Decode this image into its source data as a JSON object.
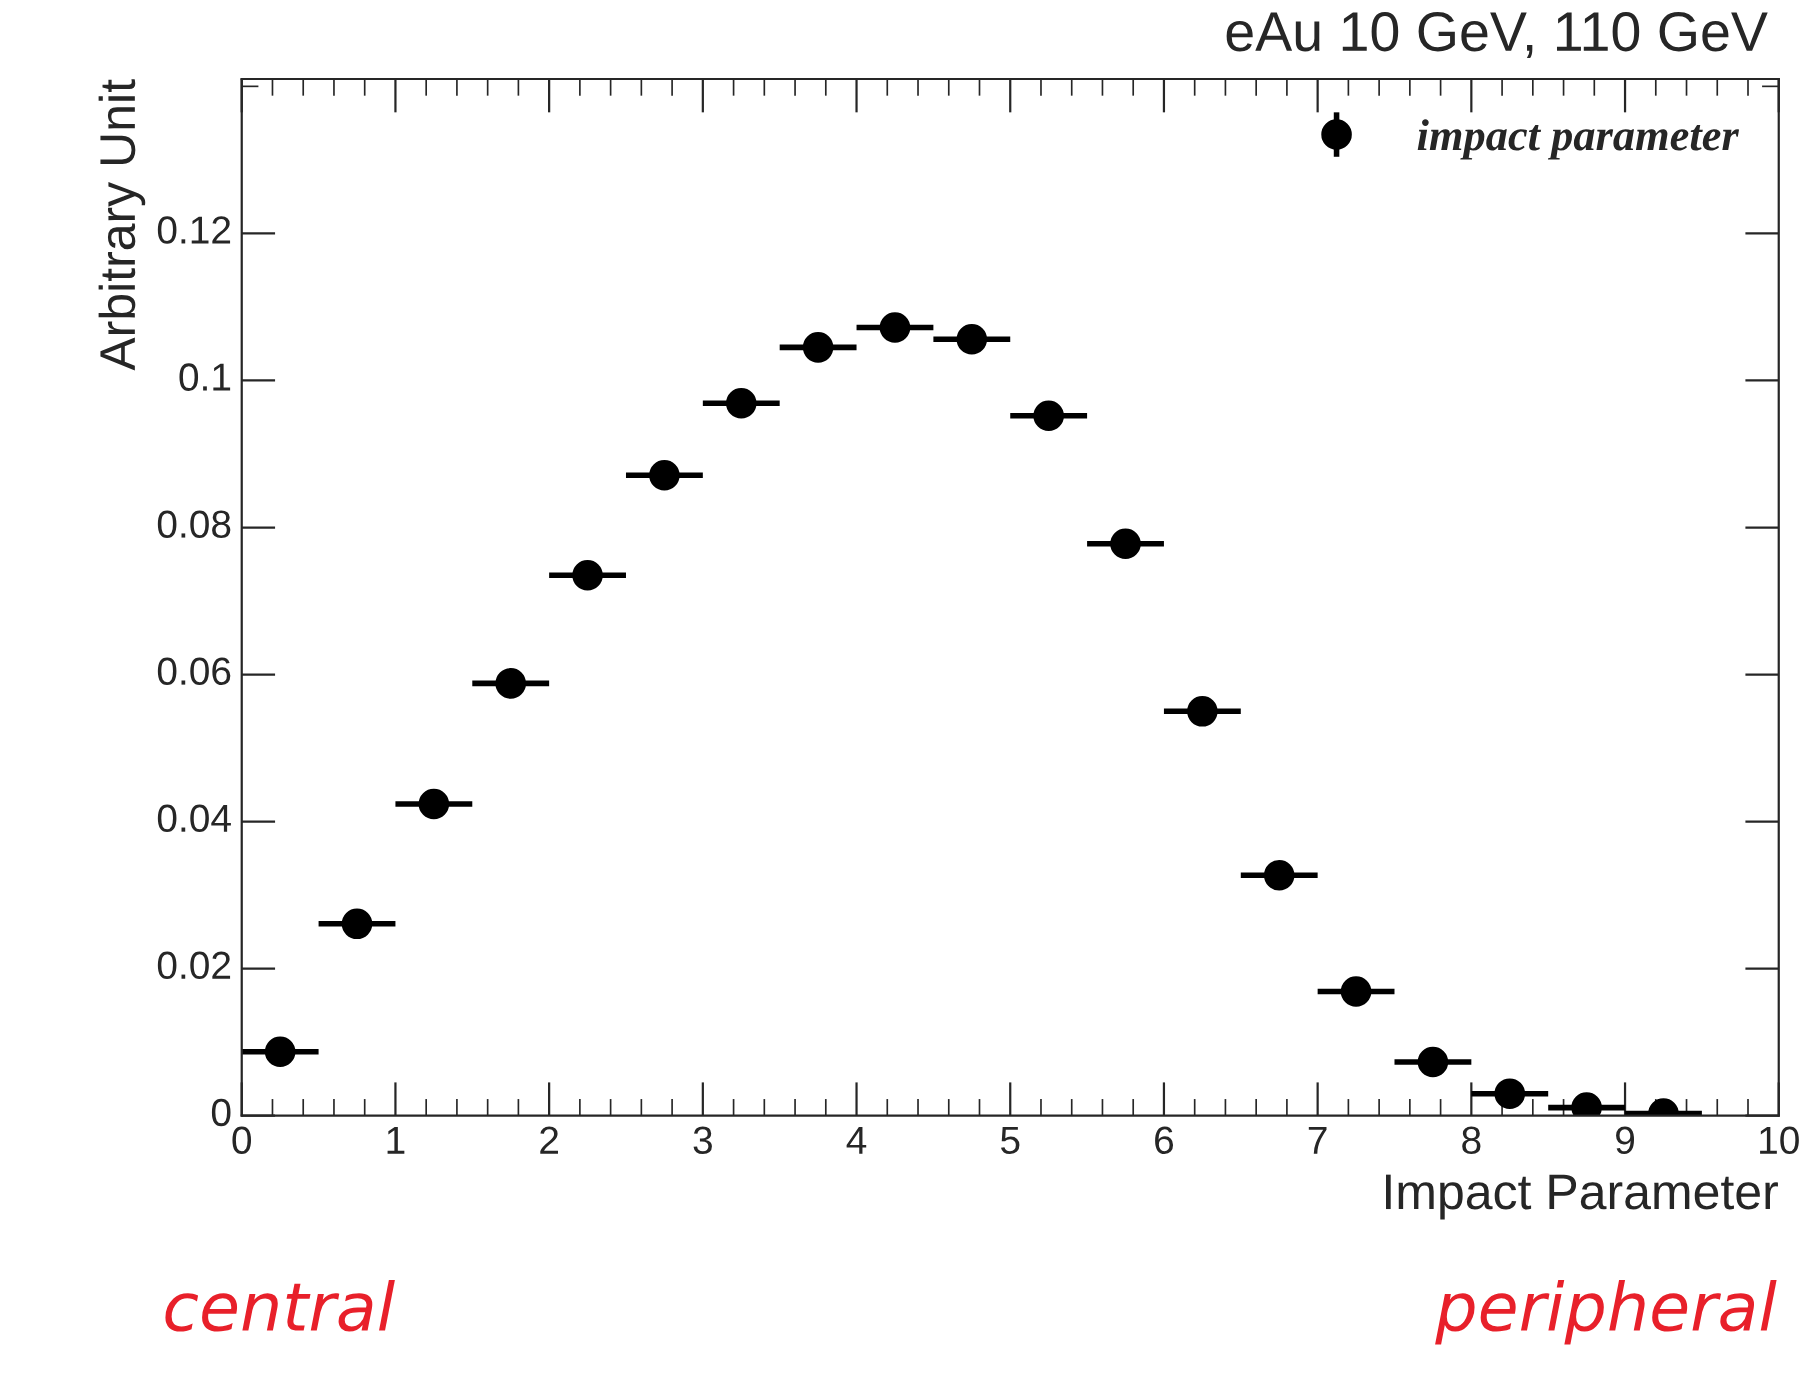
{
  "chart_data": {
    "type": "scatter",
    "title": "eAu 10 GeV, 110 GeV",
    "xlabel": "Impact Parameter",
    "ylabel": "Arbitrary Unit",
    "x": [
      0.25,
      0.75,
      1.25,
      1.75,
      2.25,
      2.75,
      3.25,
      3.75,
      4.25,
      4.75,
      5.25,
      5.75,
      6.25,
      6.75,
      7.25,
      7.75,
      8.25,
      8.75,
      9.25
    ],
    "series": [
      {
        "name": "impact parameter",
        "color": "#000000",
        "values": [
          0.0087,
          0.0261,
          0.0424,
          0.0588,
          0.0735,
          0.0871,
          0.0969,
          0.1045,
          0.1072,
          0.1056,
          0.0952,
          0.0778,
          0.055,
          0.0327,
          0.0169,
          0.0073,
          0.003,
          0.0011,
          0.0003
        ],
        "xerrors": [
          0.25,
          0.25,
          0.25,
          0.25,
          0.25,
          0.25,
          0.25,
          0.25,
          0.25,
          0.25,
          0.25,
          0.25,
          0.25,
          0.25,
          0.25,
          0.25,
          0.25,
          0.25,
          0.25
        ]
      }
    ],
    "xlim": [
      0,
      10
    ],
    "xticks": [
      0,
      1,
      2,
      3,
      4,
      5,
      6,
      7,
      8,
      9,
      10
    ],
    "ylim": [
      0,
      0.141
    ],
    "yticks": [
      0,
      0.02,
      0.04,
      0.06,
      0.08,
      0.1,
      0.12
    ],
    "marker": "circle",
    "grid": false,
    "legend": "top right",
    "annotations": [
      "central",
      "peripheral"
    ]
  }
}
